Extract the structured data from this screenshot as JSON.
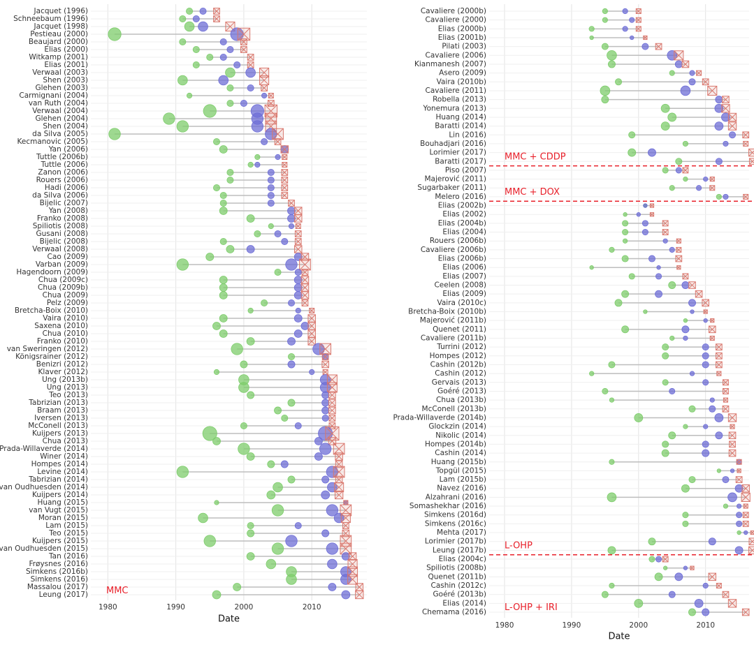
{
  "chart_data": [
    {
      "type": "dumbbell",
      "xlabel": "Date",
      "xlim": [
        1977.5,
        2018.1
      ],
      "xticks": [
        1980,
        1990,
        2000,
        2010
      ],
      "grid": true,
      "colors": [
        "#7dcc6b",
        "#6d6dd6",
        "#d9786e"
      ],
      "groups": [
        {
          "label": "MMC",
          "categories": [
            "Jacquet (1996)",
            "Schneebaum (1996)",
            "Jacquet (1998)",
            "Pestieau (2000)",
            "Beaujard (2000)",
            "Elias (2000)",
            "Witkamp (2001)",
            "Elias (2001)",
            "Verwaal (2003)",
            "Shen (2003)",
            "Glehen (2003)",
            "Carmignani (2004)",
            "van Ruth (2004)",
            "Verwaal (2004)",
            "Glehen (2004)",
            "Shen (2004)",
            "da Silva (2005)",
            "Kecmanovic (2005)",
            "Yan (2006)",
            "Tuttle (2006b)",
            "Tuttle (2006)",
            "Zanon (2006)",
            "Rouers (2006)",
            "Hadi (2006)",
            "da Silva (2006)",
            "Bijelic (2007)",
            "Yan (2008)",
            "Franko (2008)",
            "Spiliotis (2008)",
            "Gusani (2008)",
            "Bijelic (2008)",
            "Verwaal (2008)",
            "Cao (2009)",
            "Varban (2009)",
            "Hagendoorn (2009)",
            "Chua (2009c)",
            "Chua (2009b)",
            "Chua (2009)",
            "Pelz (2009)",
            "Bretcha-Boix (2010)",
            "Vaira (2010)",
            "Saxena (2010)",
            "Chua (2010)",
            "Franko (2010)",
            "van Sweringen (2012)",
            "Königsrainer (2012)",
            "Benizri (2012)",
            "Klaver (2012)",
            "Ung (2013b)",
            "Ung (2013)",
            "Teo (2013)",
            "Tabrizian (2013)",
            "Braam (2013)",
            "Iversen (2013)",
            "McConell (2013)",
            "Kuijpers (2013)",
            "Chua (2013)",
            "Prada-Willaverde (2014)",
            "Winer (2014)",
            "Hompes (2014)",
            "Levine (2014)",
            "Tabrizian (2014)",
            "van Oudhuesden (2014)",
            "Kuijpers (2014)",
            "Huang (2015)",
            "van Vugt (2015)",
            "Moran (2015)",
            "Lam (2015)",
            "Teo (2015)",
            "Kuijpers (2015)",
            "van Oudhuesden (2015)",
            "Tan (2016)",
            "Frøysnes (2016)",
            "Simkens (2016b)",
            "Simkens (2016)",
            "Massalou (2017)",
            "Leung (2017)"
          ],
          "sizes": [
            1,
            1,
            1.5,
            2,
            1,
            1,
            1,
            1,
            1.5,
            1.5,
            1,
            0.8,
            1,
            2,
            1.8,
            1.8,
            1.8,
            1,
            1.2,
            0.8,
            0.8,
            1,
            1,
            1,
            1,
            1,
            1.2,
            1.2,
            0.8,
            1,
            1,
            1.2,
            1.2,
            1.8,
            1,
            1.2,
            1.2,
            1.2,
            1,
            0.8,
            1.2,
            1.2,
            1.2,
            1.2,
            1.8,
            1,
            1.1,
            0.8,
            1.6,
            1.6,
            1.1,
            1.1,
            1.1,
            1,
            1,
            2.2,
            1.2,
            1.8,
            1.2,
            1.1,
            1.8,
            1.1,
            1.5,
            1.3,
            0.7,
            1.8,
            1.5,
            1,
            1.1,
            1.8,
            1.8,
            1.2,
            1.5,
            1.6,
            1.6,
            1.2,
            1.3
          ],
          "series": [
            {
              "values": [
                1992,
                1991,
                1992,
                1981,
                1991,
                1993,
                1995,
                1993,
                1998,
                1991,
                1998,
                1992,
                1998,
                1995,
                1989,
                1991,
                1981,
                1996,
                1997,
                2002,
                2001,
                1998,
                1998,
                1996,
                1997,
                1997,
                1997,
                2001,
                2004,
                2002,
                1997,
                1998,
                1995,
                1991,
                2005,
                1997,
                1997,
                1997,
                2003,
                2001,
                1997,
                1996,
                1997,
                2001,
                1999,
                2007,
                2000,
                1996,
                2000,
                2000,
                2001,
                2007,
                2005,
                2006,
                2000,
                1995,
                1996,
                2000,
                2001,
                2004,
                1991,
                2007,
                2005,
                2004,
                1996,
                2005,
                1994,
                2001,
                2001,
                1995,
                2005,
                2001,
                2004,
                2007,
                2007,
                1999,
                1996
              ]
            },
            {
              "values": [
                1994,
                1993,
                1994,
                1999,
                1997,
                1998,
                1997,
                1999,
                2001,
                1997,
                2001,
                2003,
                2000,
                2002,
                2002,
                2002,
                2004,
                2003,
                2006,
                2005,
                2002,
                2004,
                2004,
                2004,
                2004,
                2004,
                2007,
                2007,
                2007,
                2005,
                2006,
                2001,
                2008,
                2007,
                2008,
                2008,
                2008,
                2008,
                2007,
                2008,
                2008,
                2009,
                2008,
                2007,
                2011,
                2012,
                2007,
                2010,
                2012,
                2012,
                2012,
                2012,
                2012,
                2012,
                2008,
                2012,
                2011,
                2012,
                2011,
                2006,
                2013,
                2012,
                2013,
                2012,
                2015,
                2013,
                2014,
                2008,
                2012,
                2007,
                2013,
                2015,
                2013,
                2015,
                2015,
                2013,
                2015
              ]
            },
            {
              "values": [
                1996,
                1996,
                1998,
                2000,
                2000,
                2000,
                2001,
                2001,
                2003,
                2003,
                2003,
                2004,
                2004,
                2004,
                2004,
                2004,
                2005,
                2005,
                2006,
                2006,
                2006,
                2006,
                2006,
                2006,
                2006,
                2007,
                2008,
                2008,
                2008,
                2008,
                2008,
                2008,
                2009,
                2009,
                2009,
                2009,
                2009,
                2009,
                2009,
                2010,
                2010,
                2010,
                2010,
                2010,
                2012,
                2012,
                2012,
                2012,
                2013,
                2013,
                2013,
                2013,
                2013,
                2013,
                2013,
                2013,
                2013,
                2014,
                2014,
                2014,
                2014,
                2014,
                2014,
                2014,
                2015,
                2015,
                2015,
                2015,
                2015,
                2015,
                2015,
                2016,
                2016,
                2016,
                2016,
                2017,
                2017
              ]
            }
          ]
        }
      ]
    },
    {
      "type": "dumbbell",
      "xlabel": "Date",
      "xlim": [
        1977.7,
        2016.5
      ],
      "xticks": [
        1980,
        1990,
        2000,
        2010
      ],
      "grid": true,
      "colors": [
        "#7dcc6b",
        "#6d6dd6",
        "#d9786e"
      ],
      "groups": [
        {
          "label": "MMC + CDDP",
          "categories": [
            "Cavaliere (2000b)",
            "Cavaliere (2000)",
            "Elias (2000b)",
            "Elias (2001b)",
            "Pilati (2003)",
            "Cavaliere (2006)",
            "Kianmanesh (2007)",
            "Asero (2009)",
            "Vaira (2010b)",
            "Cavaliere (2011)",
            "Robella (2013)",
            "Yonemura (2013)",
            "Huang (2014)",
            "Baratti (2014)",
            "Lin (2016)",
            "Bouhadjari (2016)",
            "Lorimier (2017)",
            "Baratti (2017)"
          ],
          "sizes": [
            0.8,
            0.8,
            0.8,
            0.6,
            1,
            1.5,
            1.1,
            0.8,
            1,
            1.5,
            1.1,
            1.3,
            1.3,
            1.3,
            1,
            0.8,
            1.2,
            1
          ],
          "series": [
            {
              "values": [
                1995,
                1995,
                1993,
                1993,
                1995,
                1996,
                1996,
                2005,
                1997,
                1995,
                1995,
                2004,
                2005,
                2004,
                1999,
                2007,
                1999,
                2006
              ]
            },
            {
              "values": [
                1998,
                1999,
                1998,
                1999,
                2001,
                2005,
                2006,
                2008,
                2008,
                2007,
                2012,
                2012,
                2013,
                2012,
                2014,
                2013,
                2002,
                2012
              ]
            },
            {
              "values": [
                2000,
                2000,
                2000,
                2001,
                2003,
                2006,
                2007,
                2009,
                2010,
                2011,
                2013,
                2013,
                2014,
                2014,
                2016,
                2016,
                2017,
                2017
              ]
            }
          ]
        },
        {
          "label": "MMC + DOX",
          "categories": [
            "Piso (2007)",
            "Majerović (2011)",
            "Sugarbaker (2011)",
            "Melero (2016)"
          ],
          "sizes": [
            0.9,
            0.7,
            0.8,
            0.8
          ],
          "series": [
            {
              "values": [
                2004,
                2007,
                2005,
                2012
              ]
            },
            {
              "values": [
                2006,
                2010,
                2009,
                2013
              ]
            },
            {
              "values": [
                2007,
                2011,
                2011,
                2016
              ]
            }
          ]
        },
        {
          "label": "L-OHP",
          "categories": [
            "Elias (2002b)",
            "Elias (2002)",
            "Elias (2004b)",
            "Elias (2004)",
            "Rouers (2006b)",
            "Cavaliere (2006b)",
            "Elias (2006b)",
            "Elias (2006)",
            "Elias (2007)",
            "Ceelen (2008)",
            "Elias (2009)",
            "Vaira (2010c)",
            "Bretcha-Boix (2010b)",
            "Majerović (2011b)",
            "Quenet (2011)",
            "Cavaliere (2011b)",
            "Turrini (2012)",
            "Hompes (2012)",
            "Cashin (2012b)",
            "Cashin (2012)",
            "Gervais (2013)",
            "Goéré (2013)",
            "Chua (2013b)",
            "McConell (2013b)",
            "Prada-Willaverde (2014b)",
            "Glockzin (2014)",
            "Nikolic (2014)",
            "Hompes (2014b)",
            "Cashin (2014)",
            "Huang (2015b)",
            "Topgül (2015)",
            "Lam (2015b)",
            "Navez (2016)",
            "Alzahrani (2016)",
            "Somashekhar (2016)",
            "Simkens (2016d)",
            "Simkens (2016c)",
            "Mehta (2017)",
            "Lorimier (2017b)",
            "Leung (2017b)"
          ],
          "sizes": [
            0.6,
            0.6,
            0.9,
            0.9,
            0.7,
            0.8,
            1,
            0.6,
            0.9,
            1.1,
            1.1,
            1.1,
            0.6,
            0.6,
            1.1,
            0.7,
            1,
            1,
            1,
            0.7,
            0.9,
            0.9,
            0.7,
            1,
            1.3,
            0.7,
            1.1,
            1,
            1.1,
            0.8,
            0.6,
            1,
            1.2,
            1.4,
            0.7,
            0.9,
            0.9,
            0.6,
            1.1,
            1.2
          ],
          "series": [
            {
              "values": [
                2001,
                1998,
                1998,
                1998,
                1998,
                1996,
                1998,
                1993,
                1999,
                2005,
                1998,
                1997,
                2001,
                2007,
                1998,
                2005,
                2004,
                2004,
                1996,
                1993,
                2004,
                1995,
                1996,
                2008,
                2000,
                2007,
                2005,
                2004,
                2004,
                1996,
                2012,
                2008,
                2007,
                1996,
                2013,
                2007,
                2007,
                2015,
                2002,
                1996
              ]
            },
            {
              "values": [
                2001,
                2000,
                2001,
                2001,
                2004,
                2005,
                2002,
                2003,
                2003,
                2007,
                2003,
                2008,
                2008,
                2010,
                2007,
                2007,
                2010,
                2010,
                2010,
                2008,
                2010,
                2005,
                2011,
                2011,
                2012,
                2010,
                2012,
                2010,
                2010,
                2015,
                2014,
                2013,
                2015,
                2014,
                2015,
                2015,
                2015,
                2016,
                2011,
                2015
              ]
            },
            {
              "values": [
                2002,
                2002,
                2004,
                2004,
                2006,
                2006,
                2006,
                2006,
                2007,
                2008,
                2009,
                2010,
                2010,
                2011,
                2011,
                2011,
                2012,
                2012,
                2012,
                2012,
                2013,
                2013,
                2013,
                2013,
                2014,
                2014,
                2014,
                2014,
                2014,
                2015,
                2015,
                2015,
                2016,
                2016,
                2016,
                2016,
                2016,
                2017,
                2017,
                2017
              ]
            }
          ]
        },
        {
          "label": "L-OHP + IRI",
          "categories": [
            "Elias (2004c)",
            "Spiliotis (2008b)",
            "Quenet (2011b)",
            "Cashin (2012c)",
            "Goéré (2013b)",
            "Elias (2014)",
            "Chemama (2016)"
          ],
          "sizes": [
            0.9,
            0.6,
            1.2,
            0.8,
            1,
            1.3,
            1.1
          ],
          "series": [
            {
              "values": [
                2002,
                2004,
                2003,
                1996,
                1995,
                2000,
                2008
              ]
            },
            {
              "values": [
                2003,
                2007,
                2006,
                2010,
                2005,
                2009,
                2010
              ]
            },
            {
              "values": [
                2004,
                2008,
                2011,
                2012,
                2013,
                2014,
                2016
              ]
            }
          ]
        }
      ]
    }
  ]
}
